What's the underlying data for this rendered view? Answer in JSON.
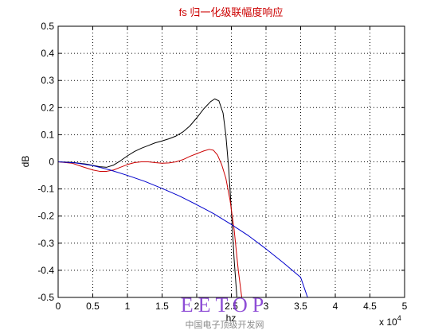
{
  "chart_data": {
    "type": "line",
    "title": "fs 归一化级联幅度响应",
    "xlabel": "hz",
    "ylabel": "dB",
    "x_exponent_label": "x 10",
    "x_exponent_power": "4",
    "xlim": [
      0,
      50000
    ],
    "ylim": [
      -0.5,
      0.5
    ],
    "grid": true,
    "xticks": [
      0,
      5000,
      10000,
      15000,
      20000,
      25000,
      30000,
      35000,
      40000,
      45000,
      50000
    ],
    "xtick_labels": [
      "0",
      "0.5",
      "1",
      "1.5",
      "2",
      "2.5",
      "3",
      "3.5",
      "4",
      "4.5",
      "5"
    ],
    "yticks": [
      -0.5,
      -0.4,
      -0.3,
      -0.2,
      -0.1,
      0,
      0.1,
      0.2,
      0.3,
      0.4,
      0.5
    ],
    "ytick_labels": [
      "-0.5",
      "-0.4",
      "-0.3",
      "-0.2",
      "-0.1",
      "0",
      "0.1",
      "0.2",
      "0.3",
      "0.4",
      "0.5"
    ],
    "series": [
      {
        "color": "#000000",
        "x": [
          0,
          2000,
          4000,
          6000,
          7000,
          8000,
          9000,
          10000,
          11000,
          12000,
          13000,
          14000,
          15000,
          16000,
          17000,
          18000,
          19000,
          20000,
          21000,
          22000,
          22600,
          23200,
          23800,
          24200,
          24600,
          25000,
          25400,
          25800
        ],
        "y": [
          0,
          -0.002,
          -0.008,
          -0.018,
          -0.02,
          -0.012,
          0.004,
          0.022,
          0.038,
          0.05,
          0.06,
          0.07,
          0.077,
          0.085,
          0.095,
          0.11,
          0.132,
          0.162,
          0.195,
          0.222,
          0.232,
          0.225,
          0.18,
          0.1,
          -0.02,
          -0.18,
          -0.36,
          -0.5
        ]
      },
      {
        "color": "#cc0000",
        "x": [
          0,
          2000,
          3500,
          5000,
          6000,
          7000,
          8000,
          9000,
          10000,
          11000,
          12000,
          13000,
          14000,
          15000,
          16000,
          17000,
          18000,
          19000,
          20000,
          21000,
          21800,
          22400,
          23000,
          23600,
          24200,
          24800,
          25400,
          26000,
          26500
        ],
        "y": [
          0,
          -0.005,
          -0.018,
          -0.03,
          -0.035,
          -0.035,
          -0.03,
          -0.02,
          -0.01,
          -0.003,
          0,
          0,
          -0.003,
          -0.005,
          -0.004,
          0,
          0.008,
          0.02,
          0.03,
          0.04,
          0.046,
          0.043,
          0.025,
          -0.01,
          -0.06,
          -0.14,
          -0.25,
          -0.4,
          -0.5
        ]
      },
      {
        "color": "#0000cc",
        "x": [
          0,
          2500,
          5000,
          7500,
          10000,
          12500,
          15000,
          17500,
          20000,
          22500,
          25000,
          27500,
          30000,
          32500,
          35000,
          36000
        ],
        "y": [
          0,
          -0.004,
          -0.014,
          -0.03,
          -0.05,
          -0.072,
          -0.098,
          -0.126,
          -0.158,
          -0.192,
          -0.231,
          -0.273,
          -0.321,
          -0.372,
          -0.426,
          -0.5
        ]
      }
    ]
  },
  "watermark": {
    "main": "EETOP",
    "sub": "中国电子顶级开发网",
    "main_color": "#7b2fd0",
    "sub_color": "#8a8a8a"
  },
  "colors": {
    "title": "#cc0000",
    "grid": "#000000"
  }
}
